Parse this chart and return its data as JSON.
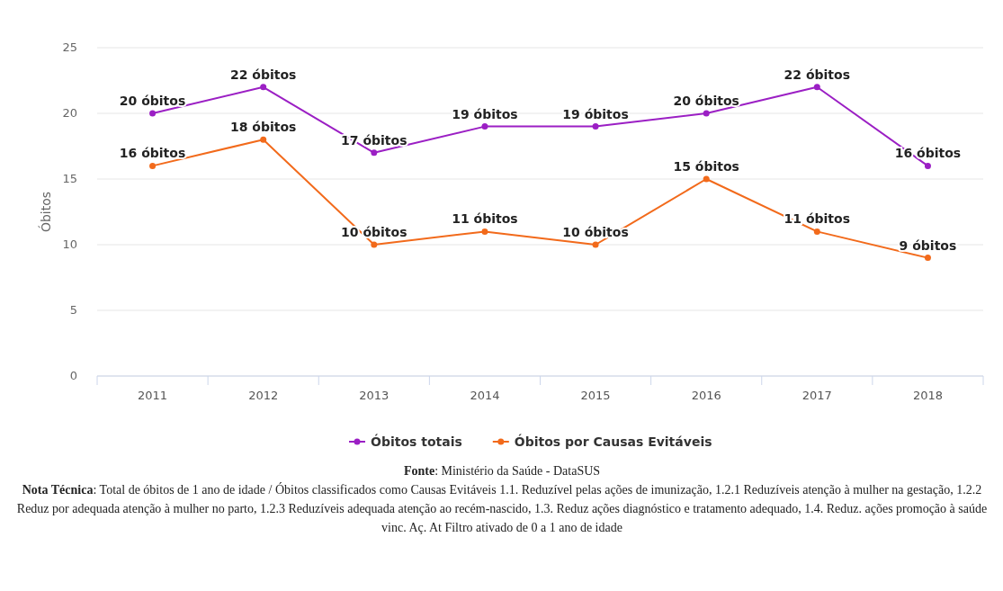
{
  "chart_data": {
    "type": "line",
    "ylabel": "Óbitos",
    "categories": [
      "2011",
      "2012",
      "2013",
      "2014",
      "2015",
      "2016",
      "2017",
      "2018"
    ],
    "series": [
      {
        "name": "Óbitos totais",
        "color": "#9b1fc4",
        "values": [
          20,
          22,
          17,
          19,
          19,
          20,
          22,
          16
        ],
        "value_labels": [
          "20 óbitos",
          "22 óbitos",
          "17 óbitos",
          "19 óbitos",
          "19 óbitos",
          "20 óbitos",
          "22 óbitos",
          "16 óbitos"
        ]
      },
      {
        "name": "Óbitos por Causas Evitáveis",
        "color": "#f26a1b",
        "values": [
          16,
          18,
          10,
          11,
          10,
          15,
          11,
          9
        ],
        "value_labels": [
          "16 óbitos",
          "18 óbitos",
          "10 óbitos",
          "11 óbitos",
          "10 óbitos",
          "15 óbitos",
          "11 óbitos",
          "9 óbitos"
        ]
      }
    ],
    "ylim": [
      0,
      25
    ],
    "yticks": [
      0,
      5,
      10,
      15,
      20,
      25
    ],
    "grid": "y",
    "legend": "bottom",
    "marker": "circle",
    "line_style": "solid",
    "annotations": [
      "Fonte: Ministério da Saúde - DataSUS",
      "Nota Técnica: Total de óbitos de 1 ano de idade / Óbitos classificados como Causas Evitáveis 1.1. Reduzível pelas ações de imunização, 1.2.1 Reduzíveis atenção à mulher na gestação, 1.2.2 Reduz por adequada atenção à mulher no parto, 1.2.3 Reduzíveis adequada atenção ao recém-nascido, 1.3. Reduz ações diagnóstico e tratamento adequado, 1.4. Reduz. ações promoção à saúde vinc. Aç. At Filtro ativado de 0 a 1 ano de idade"
    ]
  }
}
